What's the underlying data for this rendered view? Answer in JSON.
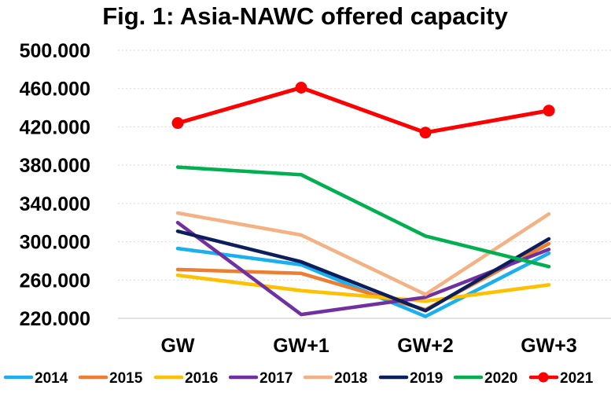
{
  "chart_data": {
    "type": "line",
    "title": "Fig. 1: Asia-NAWC offered capacity",
    "xlabel": "",
    "ylabel": "",
    "categories": [
      "GW",
      "GW+1",
      "GW+2",
      "GW+3"
    ],
    "ylim": [
      220000,
      500000
    ],
    "yticks": [
      220000,
      260000,
      300000,
      340000,
      380000,
      420000,
      460000,
      500000
    ],
    "ytick_labels": [
      "220.000",
      "260.000",
      "300.000",
      "340.000",
      "380.000",
      "420.000",
      "460.000",
      "500.000"
    ],
    "grid": "horizontal",
    "legend_position": "bottom",
    "series": [
      {
        "name": "2014",
        "color": "#1ab0ef",
        "markers": false,
        "values": [
          293000,
          276000,
          222000,
          288000
        ]
      },
      {
        "name": "2015",
        "color": "#ed7d31",
        "markers": false,
        "values": [
          271000,
          267000,
          229000,
          298000
        ]
      },
      {
        "name": "2016",
        "color": "#ffc000",
        "markers": false,
        "values": [
          265000,
          249000,
          238000,
          255000
        ]
      },
      {
        "name": "2017",
        "color": "#7030a0",
        "markers": false,
        "values": [
          320000,
          224000,
          242000,
          292000
        ]
      },
      {
        "name": "2018",
        "color": "#f4b183",
        "markers": false,
        "values": [
          330000,
          307000,
          245000,
          329000
        ]
      },
      {
        "name": "2019",
        "color": "#0c1f5c",
        "markers": false,
        "values": [
          311000,
          279000,
          228000,
          303000
        ]
      },
      {
        "name": "2020",
        "color": "#00b050",
        "markers": false,
        "values": [
          378000,
          370000,
          306000,
          274000
        ]
      },
      {
        "name": "2021",
        "color": "#ff0000",
        "markers": true,
        "values": [
          424000,
          461000,
          414000,
          437000
        ]
      }
    ]
  }
}
